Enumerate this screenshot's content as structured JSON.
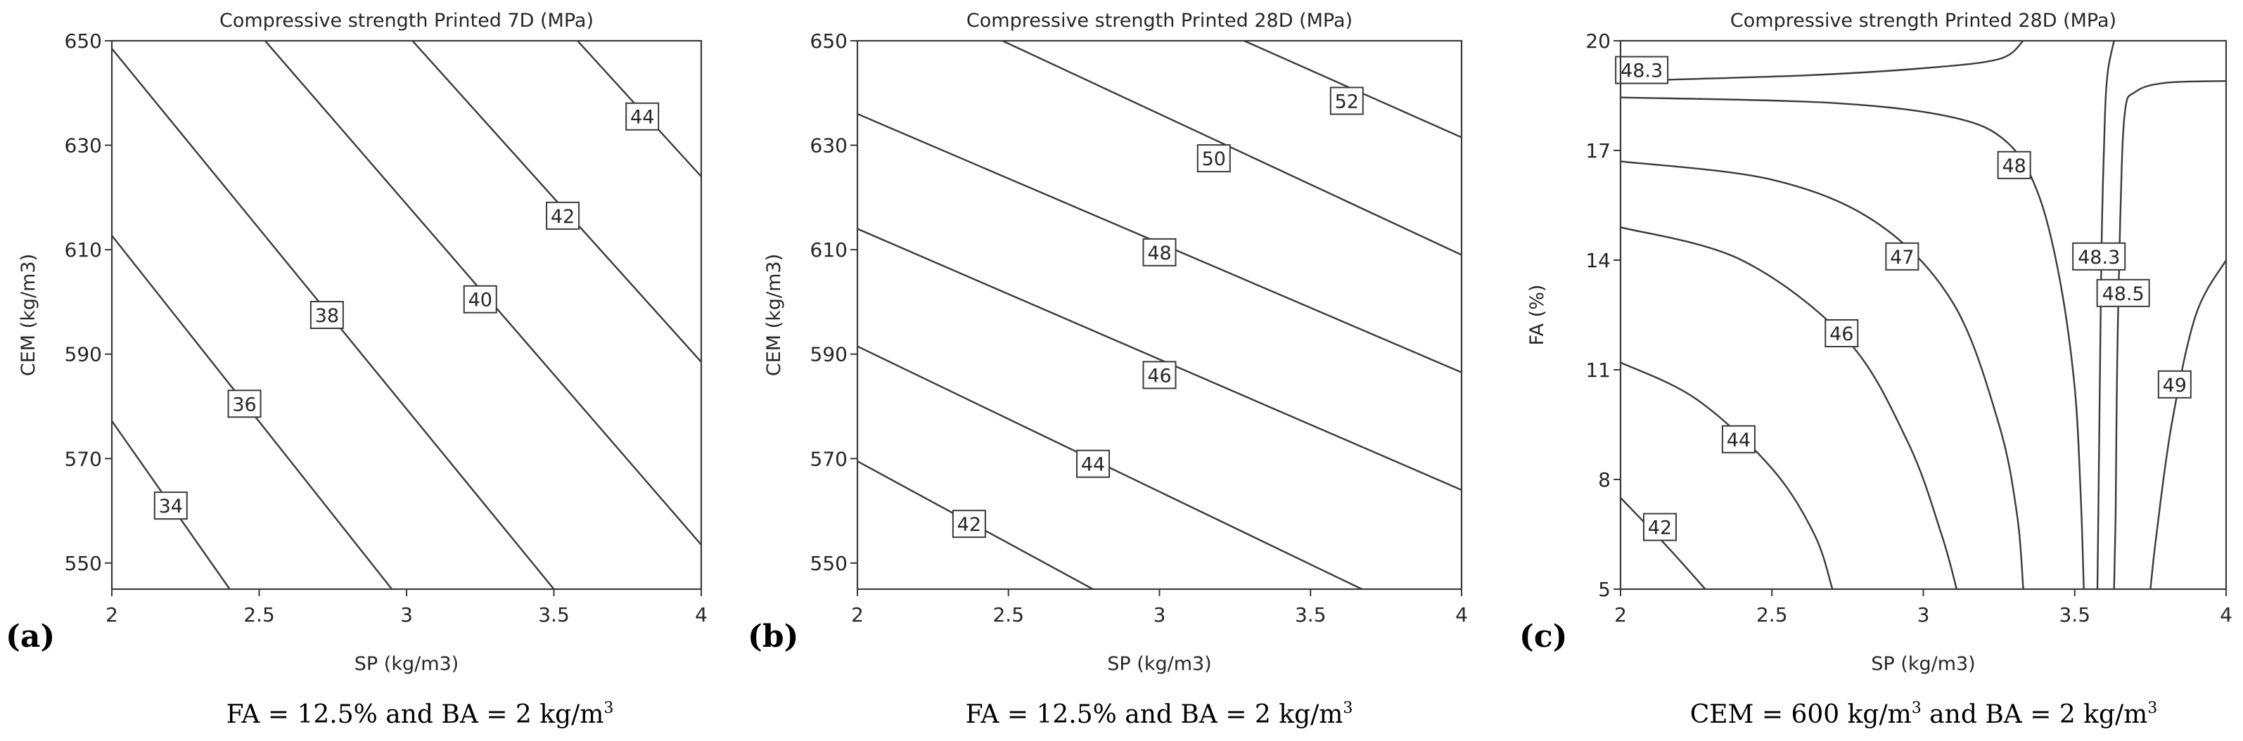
{
  "chart_data": [
    {
      "type": "contour",
      "panel_letter": "(a)",
      "title": "Compressive strength Printed 7D (MPa)",
      "xlabel": "SP (kg/m3)",
      "ylabel": "CEM (kg/m3)",
      "xlim": [
        2,
        4
      ],
      "ylim": [
        545,
        650
      ],
      "xticks": [
        "2",
        "2.5",
        "3",
        "3.5",
        "4"
      ],
      "xtick_values": [
        2,
        2.5,
        3,
        3.5,
        4
      ],
      "yticks": [
        "550",
        "570",
        "590",
        "610",
        "630",
        "650"
      ],
      "ytick_values": [
        550,
        570,
        590,
        610,
        630,
        650
      ],
      "caption": "FA = 12.5% and BA = 2 kg/m",
      "caption_sup": "3",
      "contours": [
        {
          "level": 34,
          "label": "34",
          "points": [
            [
              2,
              577.2
            ],
            [
              2.4,
              545
            ]
          ],
          "label_at": [
            2.2,
            561
          ]
        },
        {
          "level": 36,
          "label": "36",
          "points": [
            [
              2,
              612.7
            ],
            [
              2.95,
              545
            ]
          ],
          "label_at": [
            2.45,
            580.5
          ]
        },
        {
          "level": 38,
          "label": "38",
          "points": [
            [
              2,
              648.5
            ],
            [
              3.5,
              545
            ]
          ],
          "label_at": [
            2.73,
            597.5
          ]
        },
        {
          "level": 40,
          "label": "40",
          "points": [
            [
              2.52,
              650
            ],
            [
              4,
              553.5
            ]
          ],
          "label_at": [
            3.25,
            600.5
          ]
        },
        {
          "level": 42,
          "label": "42",
          "points": [
            [
              3.02,
              650
            ],
            [
              4,
              588.5
            ]
          ],
          "label_at": [
            3.53,
            616.5
          ]
        },
        {
          "level": 44,
          "label": "44",
          "points": [
            [
              3.58,
              650
            ],
            [
              4,
              624
            ]
          ],
          "label_at": [
            3.8,
            635.5
          ]
        }
      ]
    },
    {
      "type": "contour",
      "panel_letter": "(b)",
      "title": "Compressive strength Printed 28D (MPa)",
      "xlabel": "SP (kg/m3)",
      "ylabel": "CEM (kg/m3)",
      "xlim": [
        2,
        4
      ],
      "ylim": [
        545,
        650
      ],
      "xticks": [
        "2",
        "2.5",
        "3",
        "3.5",
        "4"
      ],
      "xtick_values": [
        2,
        2.5,
        3,
        3.5,
        4
      ],
      "yticks": [
        "550",
        "570",
        "590",
        "610",
        "630",
        "650"
      ],
      "ytick_values": [
        550,
        570,
        590,
        610,
        630,
        650
      ],
      "caption": "FA = 12.5% and BA = 2 kg/m",
      "caption_sup": "3",
      "contours": [
        {
          "level": 42,
          "label": "42",
          "points": [
            [
              2,
              569.5
            ],
            [
              2.78,
              545
            ]
          ],
          "label_at": [
            2.37,
            557.5
          ]
        },
        {
          "level": 44,
          "label": "44",
          "points": [
            [
              2,
              591.5
            ],
            [
              3.67,
              545
            ]
          ],
          "label_at": [
            2.78,
            569
          ]
        },
        {
          "level": 46,
          "label": "46",
          "points": [
            [
              2,
              614
            ],
            [
              4,
              564
            ]
          ],
          "label_at": [
            3.0,
            586
          ]
        },
        {
          "level": 48,
          "label": "48",
          "points": [
            [
              2,
              636
            ],
            [
              4,
              586.5
            ]
          ],
          "label_at": [
            3.0,
            609.5
          ]
        },
        {
          "level": 50,
          "label": "50",
          "points": [
            [
              2.48,
              650
            ],
            [
              4,
              609
            ]
          ],
          "label_at": [
            3.18,
            627.5
          ]
        },
        {
          "level": 52,
          "label": "52",
          "points": [
            [
              3.28,
              650
            ],
            [
              4,
              631.5
            ]
          ],
          "label_at": [
            3.62,
            638.5
          ]
        }
      ]
    },
    {
      "type": "contour",
      "panel_letter": "(c)",
      "title": "Compressive strength Printed 28D (MPa)",
      "xlabel": "SP (kg/m3)",
      "ylabel": "FA (%)",
      "xlim": [
        2,
        4
      ],
      "ylim": [
        5,
        20
      ],
      "xticks": [
        "2",
        "2.5",
        "3",
        "3.5",
        "4"
      ],
      "xtick_values": [
        2,
        2.5,
        3,
        3.5,
        4
      ],
      "yticks": [
        "5",
        "8",
        "11",
        "14",
        "17",
        "20"
      ],
      "ytick_values": [
        5,
        8,
        11,
        14,
        17,
        20
      ],
      "caption": "CEM = 600 kg/m",
      "caption_sup": "3",
      "caption_tail": " and BA = 2 kg/m",
      "caption_tail_sup": "3",
      "contours": [
        {
          "level": 42,
          "label": "42",
          "points": [
            [
              2,
              7.5
            ],
            [
              2.15,
              6.2
            ],
            [
              2.28,
              5
            ]
          ],
          "label_at": [
            2.13,
            6.7
          ]
        },
        {
          "level": 44,
          "label": "44",
          "points": [
            [
              2,
              11.2
            ],
            [
              2.25,
              10.2
            ],
            [
              2.5,
              8.3
            ],
            [
              2.64,
              6.5
            ],
            [
              2.7,
              5
            ]
          ],
          "label_at": [
            2.39,
            9.1
          ]
        },
        {
          "level": 46,
          "label": "46",
          "points": [
            [
              2,
              14.9
            ],
            [
              2.4,
              14.0
            ],
            [
              2.75,
              11.8
            ],
            [
              2.95,
              9.0
            ],
            [
              3.06,
              6.5
            ],
            [
              3.11,
              5
            ]
          ],
          "label_at": [
            2.73,
            12
          ]
        },
        {
          "level": 47,
          "label": "47",
          "points": [
            [
              2,
              16.7
            ],
            [
              2.5,
              16.2
            ],
            [
              2.85,
              15.0
            ],
            [
              3.1,
              12.8
            ],
            [
              3.25,
              9.5
            ],
            [
              3.31,
              7.0
            ],
            [
              3.33,
              5
            ]
          ],
          "label_at": [
            2.93,
            14.1
          ]
        },
        {
          "level": 48,
          "label": "48",
          "points": [
            [
              2,
              18.45
            ],
            [
              2.7,
              18.3
            ],
            [
              3.1,
              17.9
            ],
            [
              3.28,
              17.2
            ],
            [
              3.38,
              15.8
            ],
            [
              3.45,
              13.5
            ],
            [
              3.5,
              10.5
            ],
            [
              3.52,
              7.5
            ],
            [
              3.53,
              5
            ]
          ],
          "label_at": [
            3.3,
            16.6
          ]
        },
        {
          "level": 48.3,
          "label": "48.3",
          "points": [
            [
              2,
              18.9
            ],
            [
              2.6,
              19.05
            ],
            [
              3.0,
              19.25
            ],
            [
              3.25,
              19.5
            ],
            [
              3.33,
              20
            ]
          ],
          "label_at": [
            2.07,
            19.2
          ]
        },
        {
          "level": 48.3,
          "label": "48.3",
          "points": [
            [
              3.63,
              20
            ],
            [
              3.61,
              19.2
            ],
            [
              3.6,
              18.0
            ],
            [
              3.59,
              15.0
            ],
            [
              3.585,
              12.0
            ],
            [
              3.58,
              8.5
            ],
            [
              3.575,
              5
            ]
          ],
          "label_at": [
            3.58,
            14.1
          ]
        },
        {
          "level": 48.5,
          "label": "48.5",
          "points": [
            [
              4,
              18.9
            ],
            [
              3.8,
              18.85
            ],
            [
              3.7,
              18.6
            ],
            [
              3.665,
              18.0
            ],
            [
              3.65,
              15.0
            ],
            [
              3.64,
              11.0
            ],
            [
              3.635,
              7.0
            ],
            [
              3.63,
              5
            ]
          ],
          "label_at": [
            3.66,
            13.1
          ]
        },
        {
          "level": 49,
          "label": "49",
          "points": [
            [
              4,
              14.0
            ],
            [
              3.9,
              12.5
            ],
            [
              3.82,
              9.5
            ],
            [
              3.77,
              6.5
            ],
            [
              3.75,
              5
            ]
          ],
          "label_at": [
            3.83,
            10.6
          ]
        }
      ]
    }
  ]
}
